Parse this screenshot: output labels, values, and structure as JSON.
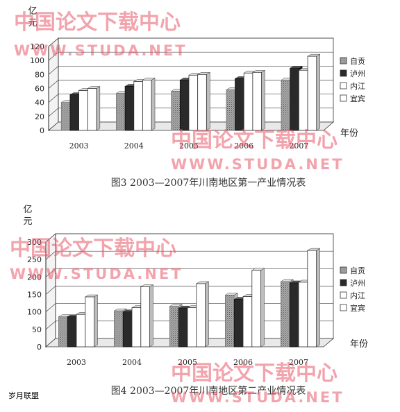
{
  "watermarks": {
    "cn": "中国论文下载中心",
    "en": "WWW.STUDA.NET"
  },
  "footer_text": "岁月联盟",
  "colors": {
    "zigong": "#8e8e8e",
    "luzhou": "#2a2a2a",
    "neijiang": "#ffffff",
    "yibin": "#ffffff",
    "watermark": "#e8586a"
  },
  "chart_data": [
    {
      "type": "bar",
      "title": "图3 2003—2007年川南地区第一产业情况表",
      "ylabel": "亿元",
      "xlabel": "年份",
      "categories": [
        "2003",
        "2004",
        "2005",
        "2006",
        "2007"
      ],
      "ylim": [
        0,
        120
      ],
      "yticks": [
        0,
        20,
        40,
        60,
        80,
        100,
        120
      ],
      "legend_position": "right",
      "series": [
        {
          "name": "自贡",
          "values": [
            40,
            53,
            56,
            58,
            72
          ]
        },
        {
          "name": "泸州",
          "values": [
            51,
            63,
            72,
            74,
            89
          ]
        },
        {
          "name": "内江",
          "values": [
            57,
            70,
            79,
            82,
            86
          ]
        },
        {
          "name": "宜宾",
          "values": [
            60,
            72,
            80,
            83,
            106
          ]
        }
      ]
    },
    {
      "type": "bar",
      "title": "图4 2003—2007年川南地区第二产业情况表",
      "ylabel": "亿元",
      "xlabel": "年份",
      "categories": [
        "2003",
        "2004",
        "2005",
        "2006",
        "2007"
      ],
      "ylim": [
        0,
        300
      ],
      "yticks": [
        0,
        50,
        100,
        150,
        200,
        250,
        300
      ],
      "legend_position": "right",
      "series": [
        {
          "name": "自贡",
          "values": [
            86,
            103,
            116,
            148,
            187
          ]
        },
        {
          "name": "泸州",
          "values": [
            86,
            100,
            111,
            136,
            183
          ]
        },
        {
          "name": "内江",
          "values": [
            93,
            112,
            112,
            144,
            185
          ]
        },
        {
          "name": "宜宾",
          "values": [
            143,
            172,
            181,
            219,
            276
          ]
        }
      ]
    }
  ]
}
